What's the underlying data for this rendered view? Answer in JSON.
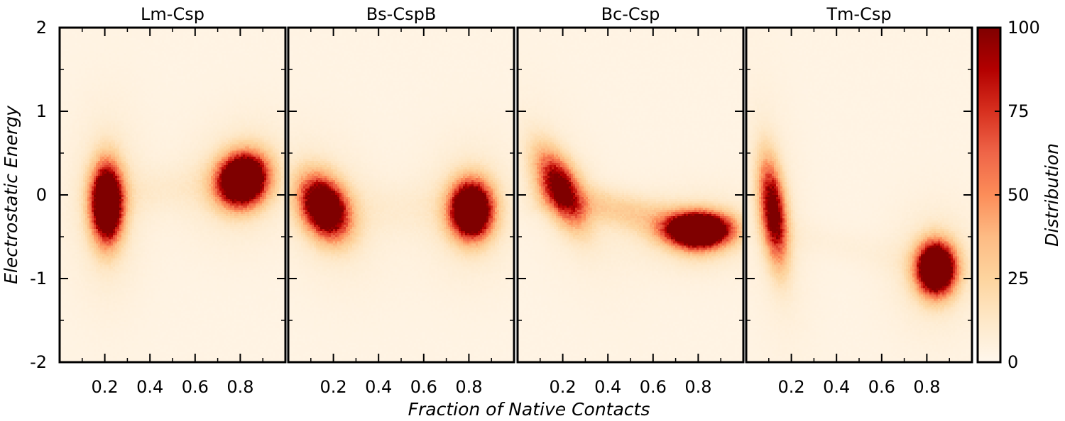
{
  "chart_data": {
    "type": "heatmap",
    "xlabel": "Fraction of Native Contacts",
    "ylabel": "Electrostatic Energy",
    "colorbar": {
      "label": "Distribution",
      "range": [
        0,
        100
      ],
      "ticks": [
        0,
        25,
        50,
        75,
        100
      ],
      "colormap": "OrRd",
      "colors": [
        "#fff7ec",
        "#fee8c8",
        "#fdd49e",
        "#fdbb84",
        "#fc8d59",
        "#ef6548",
        "#d7301f",
        "#b30000",
        "#7f0000"
      ]
    },
    "xlim": [
      0,
      1
    ],
    "ylim": [
      -2,
      2
    ],
    "xticks": [
      0.2,
      0.4,
      0.6,
      0.8
    ],
    "xtick_labels": [
      "0.2",
      "0.4",
      "0.6",
      "0.8"
    ],
    "yticks": [
      -2,
      -1,
      0,
      1,
      2
    ],
    "ytick_labels": [
      "-2",
      "-1",
      "0",
      "1",
      "2"
    ],
    "panels": [
      {
        "title": "Lm-Csp",
        "clusters": [
          {
            "x": 0.21,
            "y": -0.1,
            "sx": 0.045,
            "sy": 0.3,
            "rho": 0.0,
            "peak": 180
          },
          {
            "x": 0.81,
            "y": 0.18,
            "sx": 0.07,
            "sy": 0.2,
            "rho": 0.1,
            "peak": 190
          }
        ],
        "bridge": {
          "from": [
            0.21,
            0.0
          ],
          "to": [
            0.81,
            0.15
          ],
          "weight": 6
        }
      },
      {
        "title": "Bs-CspB",
        "clusters": [
          {
            "x": 0.16,
            "y": -0.15,
            "sx": 0.07,
            "sy": 0.24,
            "rho": -0.3,
            "peak": 150
          },
          {
            "x": 0.81,
            "y": -0.18,
            "sx": 0.06,
            "sy": 0.22,
            "rho": 0.0,
            "peak": 180
          }
        ],
        "bridge": {
          "from": [
            0.16,
            -0.15
          ],
          "to": [
            0.81,
            -0.18
          ],
          "weight": 5
        }
      },
      {
        "title": "Bc-Csp",
        "clusters": [
          {
            "x": 0.19,
            "y": 0.08,
            "sx": 0.07,
            "sy": 0.3,
            "rho": -0.6,
            "peak": 95
          },
          {
            "x": 0.8,
            "y": -0.42,
            "sx": 0.09,
            "sy": 0.13,
            "rho": 0.0,
            "peak": 200
          }
        ],
        "bridge": {
          "from": [
            0.19,
            0.0
          ],
          "to": [
            0.8,
            -0.42
          ],
          "weight": 22
        }
      },
      {
        "title": "Tm-Csp",
        "clusters": [
          {
            "x": 0.12,
            "y": -0.2,
            "sx": 0.04,
            "sy": 0.4,
            "rho": -0.4,
            "peak": 110
          },
          {
            "x": 0.84,
            "y": -0.88,
            "sx": 0.055,
            "sy": 0.2,
            "rho": 0.0,
            "peak": 190
          }
        ],
        "bridge": {
          "from": [
            0.12,
            -0.4
          ],
          "to": [
            0.84,
            -0.88
          ],
          "weight": 3
        }
      }
    ]
  }
}
